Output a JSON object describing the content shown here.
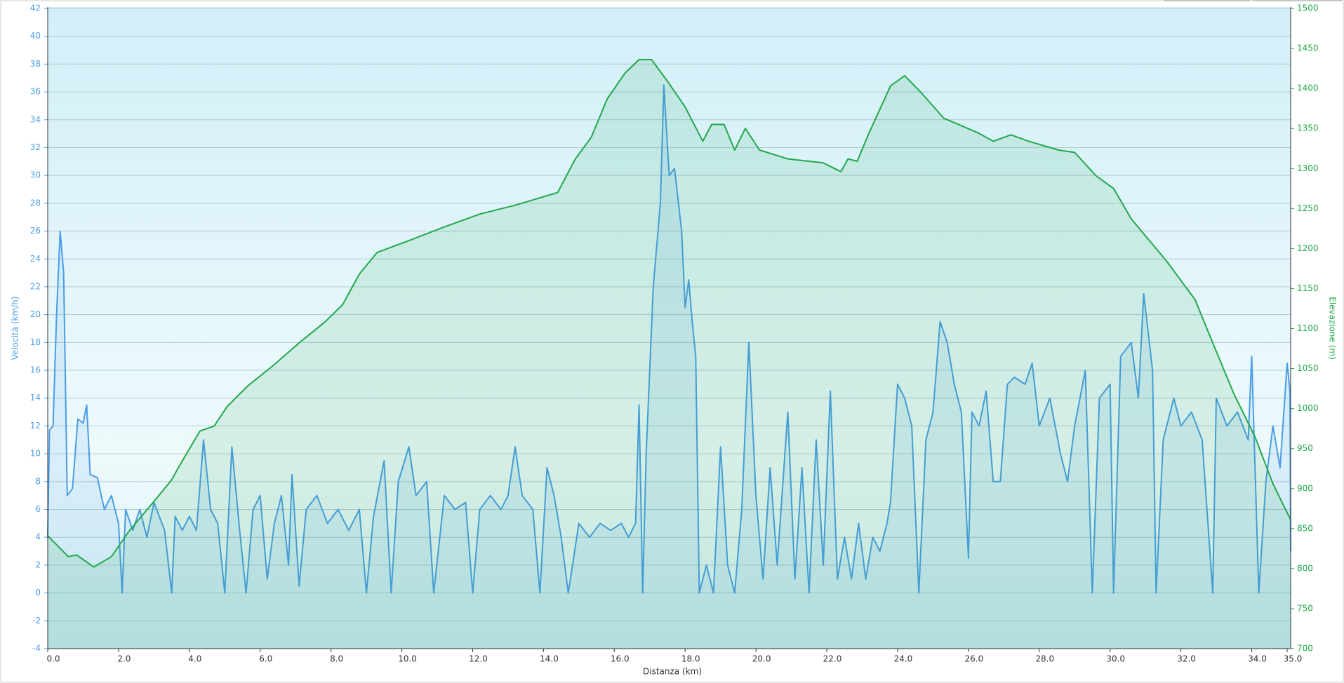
{
  "chart_data": {
    "type": "line",
    "xlabel": "Distanza  (km)",
    "ylabel": "Velocità (km/h)",
    "y2label": "Elevazione (m)",
    "grid": true,
    "xlim": [
      0,
      35.1
    ],
    "xticks": [
      {
        "value": 0,
        "label": "0.0"
      },
      {
        "value": 2,
        "label": "2.0"
      },
      {
        "value": 4,
        "label": "4.0"
      },
      {
        "value": 6,
        "label": "6.0"
      },
      {
        "value": 8,
        "label": "8.0"
      },
      {
        "value": 10,
        "label": "10.0"
      },
      {
        "value": 12,
        "label": "12.0"
      },
      {
        "value": 14,
        "label": "14.0"
      },
      {
        "value": 16,
        "label": "16.0"
      },
      {
        "value": 18,
        "label": "18.0"
      },
      {
        "value": 20,
        "label": "20.0"
      },
      {
        "value": 22,
        "label": "22.0"
      },
      {
        "value": 24,
        "label": "24.0"
      },
      {
        "value": 26,
        "label": "26.0"
      },
      {
        "value": 28,
        "label": "28.0"
      },
      {
        "value": 30,
        "label": "30.0"
      },
      {
        "value": 32,
        "label": "32.0"
      },
      {
        "value": 34,
        "label": "34.0"
      },
      {
        "value": 35,
        "label": "35.0"
      }
    ],
    "ylim": [
      -4,
      42
    ],
    "yticks": [
      -4,
      -2,
      0,
      2,
      4,
      6,
      8,
      10,
      12,
      14,
      16,
      18,
      20,
      22,
      24,
      26,
      28,
      30,
      32,
      34,
      36,
      38,
      40,
      42
    ],
    "y2lim": [
      700,
      1500
    ],
    "y2ticks": [
      700,
      750,
      800,
      850,
      900,
      950,
      1000,
      1050,
      1100,
      1150,
      1200,
      1250,
      1300,
      1350,
      1400,
      1450,
      1500
    ],
    "series": [
      {
        "color": "#4a9de6",
        "x": [
          0,
          0.05,
          0.15,
          0.25,
          0.35,
          0.45,
          0.55,
          0.7,
          0.85,
          1.0,
          1.1,
          1.2,
          1.4,
          1.6,
          1.8,
          2.0,
          2.1,
          2.2,
          2.4,
          2.6,
          2.8,
          3.0,
          3.3,
          3.5,
          3.6,
          3.8,
          4.0,
          4.2,
          4.4,
          4.6,
          4.8,
          5.0,
          5.2,
          5.4,
          5.6,
          5.8,
          6.0,
          6.2,
          6.4,
          6.6,
          6.8,
          6.9,
          7.1,
          7.3,
          7.6,
          7.9,
          8.2,
          8.5,
          8.8,
          9.0,
          9.2,
          9.5,
          9.7,
          9.9,
          10.2,
          10.4,
          10.7,
          10.9,
          11.2,
          11.5,
          11.8,
          12.0,
          12.2,
          12.5,
          12.8,
          13.0,
          13.2,
          13.4,
          13.7,
          13.9,
          14.1,
          14.3,
          14.5,
          14.7,
          15.0,
          15.3,
          15.6,
          15.9,
          16.2,
          16.4,
          16.6,
          16.7,
          16.8,
          16.9,
          17.1,
          17.3,
          17.4,
          17.55,
          17.7,
          17.9,
          18.0,
          18.1,
          18.2,
          18.3,
          18.4,
          18.6,
          18.8,
          19.0,
          19.2,
          19.4,
          19.6,
          19.8,
          20.0,
          20.2,
          20.4,
          20.6,
          20.9,
          21.1,
          21.3,
          21.5,
          21.7,
          21.9,
          22.1,
          22.3,
          22.5,
          22.7,
          22.9,
          23.1,
          23.3,
          23.5,
          23.7,
          23.8,
          24.0,
          24.2,
          24.4,
          24.6,
          24.8,
          25.0,
          25.2,
          25.4,
          25.6,
          25.8,
          26.0,
          26.1,
          26.3,
          26.5,
          26.7,
          26.9,
          27.1,
          27.3,
          27.6,
          27.8,
          28.0,
          28.3,
          28.6,
          28.8,
          29.0,
          29.3,
          29.5,
          29.7,
          30.0,
          30.1,
          30.3,
          30.6,
          30.8,
          30.95,
          31.2,
          31.3,
          31.5,
          31.8,
          32.0,
          32.3,
          32.6,
          32.9,
          33.0,
          33.3,
          33.6,
          33.9,
          34.0,
          34.2,
          34.4,
          34.6,
          34.8,
          35.0,
          35.08,
          35.1
        ],
        "values": [
          4,
          11.7,
          12,
          20,
          26,
          23,
          7,
          7.5,
          12.5,
          12.2,
          13.5,
          8.5,
          8.3,
          6,
          7,
          5,
          0,
          6,
          4.5,
          6,
          4,
          6.5,
          4.5,
          0,
          5.5,
          4.5,
          5.5,
          4.5,
          11,
          6,
          5,
          0,
          10.5,
          5,
          0,
          6,
          7,
          1,
          5,
          7,
          2,
          8.5,
          0.5,
          6,
          7,
          5,
          6,
          4.5,
          6,
          0,
          5.5,
          9.5,
          0,
          8,
          10.5,
          7,
          8,
          0,
          7,
          6,
          6.5,
          0,
          6,
          7,
          6,
          7,
          10.5,
          7,
          6,
          0,
          9,
          7,
          4,
          0,
          5,
          4,
          5,
          4.5,
          5,
          4,
          5,
          13.5,
          0,
          10,
          22,
          28,
          36.5,
          30,
          30.5,
          26,
          20.5,
          22.5,
          19.5,
          17,
          0,
          2,
          0,
          10.5,
          2,
          0,
          6,
          18,
          7,
          1,
          9,
          2,
          13,
          1,
          9,
          0,
          11,
          2,
          14.5,
          1,
          4,
          1,
          5,
          1,
          4,
          3,
          5,
          6.5,
          15,
          14,
          12,
          0,
          11,
          13,
          19.5,
          18,
          15,
          13,
          2.5,
          13,
          12,
          14.5,
          8,
          8,
          15,
          15.5,
          15,
          16.5,
          12,
          14,
          10,
          8,
          12,
          16,
          0,
          14,
          15,
          0,
          17,
          18,
          14,
          21.5,
          16,
          0,
          11,
          14,
          12,
          13,
          11,
          0,
          14,
          12,
          13,
          11,
          17,
          0,
          8,
          12,
          9,
          16.5,
          14.5,
          3
        ]
      },
      {
        "color": "#22a84a",
        "axis": "y2",
        "x": [
          0,
          0.58,
          0.82,
          1.3,
          1.8,
          2.3,
          3.0,
          3.5,
          3.7,
          4.3,
          4.7,
          5.06,
          5.3,
          5.67,
          6.4,
          7.1,
          7.85,
          8.33,
          8.8,
          9.3,
          10.27,
          11.2,
          12.2,
          13.2,
          14.4,
          14.9,
          15.35,
          15.8,
          16.3,
          16.7,
          17.05,
          17.5,
          18.0,
          18.5,
          18.75,
          19.1,
          19.4,
          19.7,
          20.1,
          20.9,
          21.9,
          22.4,
          22.6,
          22.86,
          23.2,
          23.8,
          24.2,
          24.7,
          25.3,
          26.25,
          26.7,
          27.2,
          27.7,
          28.55,
          29.0,
          29.6,
          30.1,
          30.6,
          31.6,
          32.4,
          32.9,
          33.5,
          34.1,
          34.6,
          35.1
        ],
        "values": [
          841,
          815,
          817,
          802,
          815,
          847,
          884,
          911,
          927,
          972,
          978,
          1002,
          1013,
          1029,
          1055,
          1082,
          1109,
          1130,
          1168,
          1195,
          1211,
          1227,
          1243,
          1254,
          1270,
          1312,
          1339,
          1387,
          1419,
          1436,
          1436,
          1409,
          1377,
          1334,
          1355,
          1355,
          1323,
          1350,
          1323,
          1312,
          1307,
          1296,
          1312,
          1309,
          1345,
          1403,
          1416,
          1393,
          1363,
          1345,
          1334,
          1342,
          1334,
          1323,
          1320,
          1291,
          1275,
          1237,
          1184,
          1136,
          1082,
          1018,
          964,
          906,
          861
        ]
      }
    ]
  }
}
